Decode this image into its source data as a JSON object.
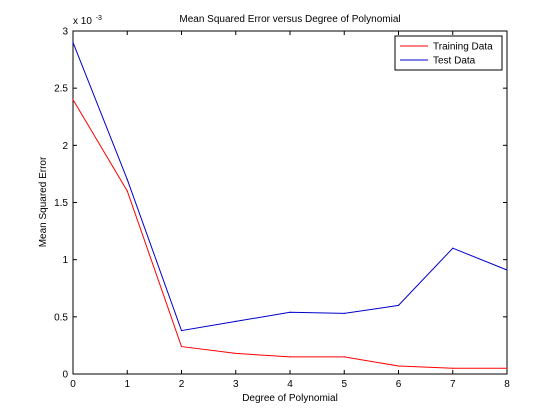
{
  "chart_data": {
    "type": "line",
    "title": "Mean Squared Error versus Degree of Polynomial",
    "xlabel": "Degree of Polynomial",
    "ylabel": "Mean Squared Error",
    "y_scale_prefix": "x 10",
    "y_scale_exponent": "-3",
    "xlim": [
      0,
      8
    ],
    "ylim": [
      0,
      3
    ],
    "x_ticks": [
      "0",
      "1",
      "2",
      "3",
      "4",
      "5",
      "6",
      "7",
      "8"
    ],
    "y_ticks": [
      "0",
      "0.5",
      "1",
      "1.5",
      "2",
      "2.5",
      "3"
    ],
    "y_tick_values": [
      0,
      0.5,
      1,
      1.5,
      2,
      2.5,
      3
    ],
    "grid": false,
    "legend_position": "top-right",
    "x": [
      0,
      1,
      2,
      3,
      4,
      5,
      6,
      7,
      8
    ],
    "series": [
      {
        "name": "Training Data",
        "color": "#ff0000",
        "values": [
          2.4,
          1.6,
          0.24,
          0.18,
          0.15,
          0.15,
          0.07,
          0.05,
          0.05
        ]
      },
      {
        "name": "Test Data",
        "color": "#0000cc",
        "values": [
          2.9,
          1.7,
          0.38,
          0.46,
          0.54,
          0.53,
          0.6,
          1.1,
          0.91
        ]
      }
    ]
  }
}
